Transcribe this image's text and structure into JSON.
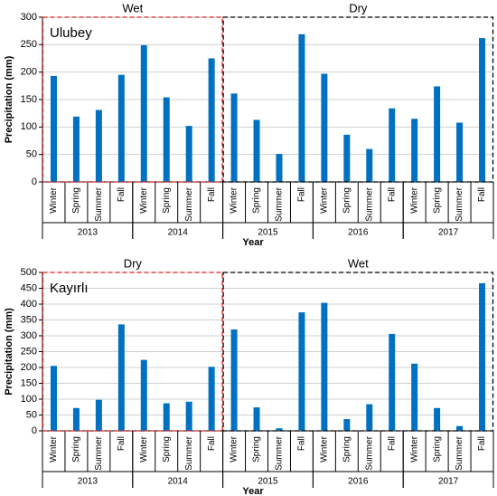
{
  "chart_data": [
    {
      "type": "bar",
      "title": "Ulubey",
      "y_label": "Precipitation (mm)",
      "x_label": "Year",
      "color": "#0070c0",
      "categories": [
        "Winter",
        "Spring",
        "Summer",
        "Fall",
        "Winter",
        "Spring",
        "Summer",
        "Fall",
        "Winter",
        "Spring",
        "Summer",
        "Fall",
        "Winter",
        "Spring",
        "Summer",
        "Fall",
        "Winter",
        "Spring",
        "Summer",
        "Fall"
      ],
      "values": [
        193,
        119,
        131,
        195,
        249,
        154,
        102,
        225,
        161,
        113,
        51,
        269,
        197,
        86,
        60,
        134,
        115,
        174,
        108,
        262
      ],
      "regions": [
        {
          "label": "Wet",
          "color": "#e02020",
          "groups": [
            "2013",
            "2014"
          ]
        },
        {
          "label": "Dry",
          "color": "#000000",
          "groups": [
            "2015",
            "2016",
            "2017"
          ]
        }
      ],
      "ylim": [
        0,
        300
      ],
      "yticks": [
        0,
        50,
        100,
        150,
        200,
        250,
        300
      ],
      "grid": true
    },
    {
      "type": "bar",
      "title": "Kayırlı",
      "y_label": "Precipitation (mm)",
      "x_label": "Year",
      "color": "#0070c0",
      "categories": [
        "Winter",
        "Spring",
        "Summer",
        "Fall",
        "Winter",
        "Spring",
        "Summer",
        "Fall",
        "Winter",
        "Spring",
        "Summer",
        "Fall",
        "Winter",
        "Spring",
        "Summer",
        "Fall",
        "Winter",
        "Spring",
        "Summer",
        "Fall"
      ],
      "values": [
        205,
        72,
        98,
        336,
        224,
        87,
        92,
        202,
        320,
        74,
        8,
        374,
        404,
        37,
        84,
        306,
        212,
        72,
        15,
        466
      ],
      "regions": [
        {
          "label": "Dry",
          "color": "#e02020",
          "groups": [
            "2013",
            "2014"
          ]
        },
        {
          "label": "Wet",
          "color": "#000000",
          "groups": [
            "2015",
            "2016",
            "2017"
          ]
        }
      ],
      "ylim": [
        0,
        500
      ],
      "yticks": [
        0,
        50,
        100,
        150,
        200,
        250,
        300,
        350,
        400,
        450,
        500
      ],
      "grid": true
    }
  ]
}
